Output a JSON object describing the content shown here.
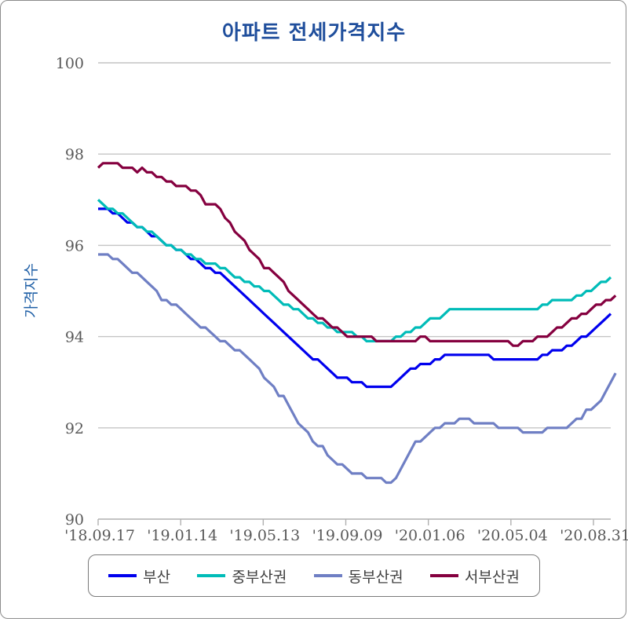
{
  "chart_data": {
    "type": "line",
    "title": "아파트 전세가격지수",
    "ylabel": "가격지수",
    "xlabel": "",
    "ylim": [
      90,
      100
    ],
    "yticks": [
      90,
      92,
      94,
      96,
      98,
      100
    ],
    "x_tick_labels": [
      "'18.09.17",
      "'19.01.14",
      "'19.05.13",
      "'19.09.09",
      "'20.01.06",
      "'20.05.04",
      "'20.08.31"
    ],
    "grid": true,
    "legend_placement": "bottom",
    "series": [
      {
        "name": "부산",
        "color": "#0000ee",
        "values": [
          96.8,
          96.8,
          96.8,
          96.7,
          96.7,
          96.6,
          96.5,
          96.5,
          96.4,
          96.4,
          96.3,
          96.2,
          96.2,
          96.1,
          96.0,
          96.0,
          95.9,
          95.9,
          95.8,
          95.7,
          95.7,
          95.6,
          95.5,
          95.5,
          95.4,
          95.4,
          95.3,
          95.2,
          95.1,
          95.0,
          94.9,
          94.8,
          94.7,
          94.6,
          94.5,
          94.4,
          94.3,
          94.2,
          94.1,
          94.0,
          93.9,
          93.8,
          93.7,
          93.6,
          93.5,
          93.5,
          93.4,
          93.3,
          93.2,
          93.1,
          93.1,
          93.1,
          93.0,
          93.0,
          93.0,
          92.9,
          92.9,
          92.9,
          92.9,
          92.9,
          92.9,
          93.0,
          93.1,
          93.2,
          93.3,
          93.3,
          93.4,
          93.4,
          93.4,
          93.5,
          93.5,
          93.6,
          93.6,
          93.6,
          93.6,
          93.6,
          93.6,
          93.6,
          93.6,
          93.6,
          93.6,
          93.5,
          93.5,
          93.5,
          93.5,
          93.5,
          93.5,
          93.5,
          93.5,
          93.5,
          93.5,
          93.6,
          93.6,
          93.7,
          93.7,
          93.7,
          93.8,
          93.8,
          93.9,
          94.0,
          94.0,
          94.1,
          94.2,
          94.3,
          94.4,
          94.5
        ]
      },
      {
        "name": "중부산권",
        "color": "#00bcb8",
        "values": [
          97.0,
          96.9,
          96.8,
          96.8,
          96.7,
          96.7,
          96.6,
          96.5,
          96.4,
          96.4,
          96.3,
          96.3,
          96.2,
          96.1,
          96.0,
          96.0,
          95.9,
          95.9,
          95.8,
          95.8,
          95.7,
          95.7,
          95.6,
          95.6,
          95.6,
          95.5,
          95.5,
          95.4,
          95.3,
          95.3,
          95.2,
          95.2,
          95.1,
          95.1,
          95.0,
          95.0,
          94.9,
          94.8,
          94.7,
          94.7,
          94.6,
          94.6,
          94.5,
          94.4,
          94.4,
          94.3,
          94.3,
          94.2,
          94.2,
          94.1,
          94.1,
          94.1,
          94.1,
          94.0,
          94.0,
          93.9,
          93.9,
          93.9,
          93.9,
          93.9,
          93.9,
          94.0,
          94.0,
          94.1,
          94.1,
          94.2,
          94.2,
          94.3,
          94.4,
          94.4,
          94.4,
          94.5,
          94.6,
          94.6,
          94.6,
          94.6,
          94.6,
          94.6,
          94.6,
          94.6,
          94.6,
          94.6,
          94.6,
          94.6,
          94.6,
          94.6,
          94.6,
          94.6,
          94.6,
          94.6,
          94.6,
          94.7,
          94.7,
          94.8,
          94.8,
          94.8,
          94.8,
          94.8,
          94.9,
          94.9,
          95.0,
          95.0,
          95.1,
          95.2,
          95.2,
          95.3
        ]
      },
      {
        "name": "동부산권",
        "color": "#6f7fc4",
        "values": [
          95.8,
          95.8,
          95.8,
          95.7,
          95.7,
          95.6,
          95.5,
          95.4,
          95.4,
          95.3,
          95.2,
          95.1,
          95.0,
          94.8,
          94.8,
          94.7,
          94.7,
          94.6,
          94.5,
          94.4,
          94.3,
          94.2,
          94.2,
          94.1,
          94.0,
          93.9,
          93.9,
          93.8,
          93.7,
          93.7,
          93.6,
          93.5,
          93.4,
          93.3,
          93.1,
          93.0,
          92.9,
          92.7,
          92.7,
          92.5,
          92.3,
          92.1,
          92.0,
          91.9,
          91.7,
          91.6,
          91.6,
          91.4,
          91.3,
          91.2,
          91.2,
          91.1,
          91.0,
          91.0,
          91.0,
          90.9,
          90.9,
          90.9,
          90.9,
          90.8,
          90.8,
          90.9,
          91.1,
          91.3,
          91.5,
          91.7,
          91.7,
          91.8,
          91.9,
          92.0,
          92.0,
          92.1,
          92.1,
          92.1,
          92.2,
          92.2,
          92.2,
          92.1,
          92.1,
          92.1,
          92.1,
          92.1,
          92.0,
          92.0,
          92.0,
          92.0,
          92.0,
          91.9,
          91.9,
          91.9,
          91.9,
          91.9,
          92.0,
          92.0,
          92.0,
          92.0,
          92.0,
          92.1,
          92.2,
          92.2,
          92.4,
          92.4,
          92.5,
          92.6,
          92.8,
          93.0,
          93.2
        ]
      },
      {
        "name": "서부산권",
        "color": "#85003f",
        "values": [
          97.7,
          97.8,
          97.8,
          97.8,
          97.8,
          97.7,
          97.7,
          97.7,
          97.6,
          97.7,
          97.6,
          97.6,
          97.5,
          97.5,
          97.4,
          97.4,
          97.3,
          97.3,
          97.3,
          97.2,
          97.2,
          97.1,
          96.9,
          96.9,
          96.9,
          96.8,
          96.6,
          96.5,
          96.3,
          96.2,
          96.1,
          95.9,
          95.8,
          95.7,
          95.5,
          95.5,
          95.4,
          95.3,
          95.2,
          95.0,
          94.9,
          94.8,
          94.7,
          94.6,
          94.5,
          94.4,
          94.4,
          94.3,
          94.2,
          94.2,
          94.1,
          94.0,
          94.0,
          94.0,
          94.0,
          94.0,
          94.0,
          93.9,
          93.9,
          93.9,
          93.9,
          93.9,
          93.9,
          93.9,
          93.9,
          93.9,
          94.0,
          94.0,
          93.9,
          93.9,
          93.9,
          93.9,
          93.9,
          93.9,
          93.9,
          93.9,
          93.9,
          93.9,
          93.9,
          93.9,
          93.9,
          93.9,
          93.9,
          93.9,
          93.9,
          93.8,
          93.8,
          93.9,
          93.9,
          93.9,
          94.0,
          94.0,
          94.0,
          94.1,
          94.2,
          94.2,
          94.3,
          94.4,
          94.4,
          94.5,
          94.5,
          94.6,
          94.7,
          94.7,
          94.8,
          94.8,
          94.9
        ]
      }
    ]
  }
}
